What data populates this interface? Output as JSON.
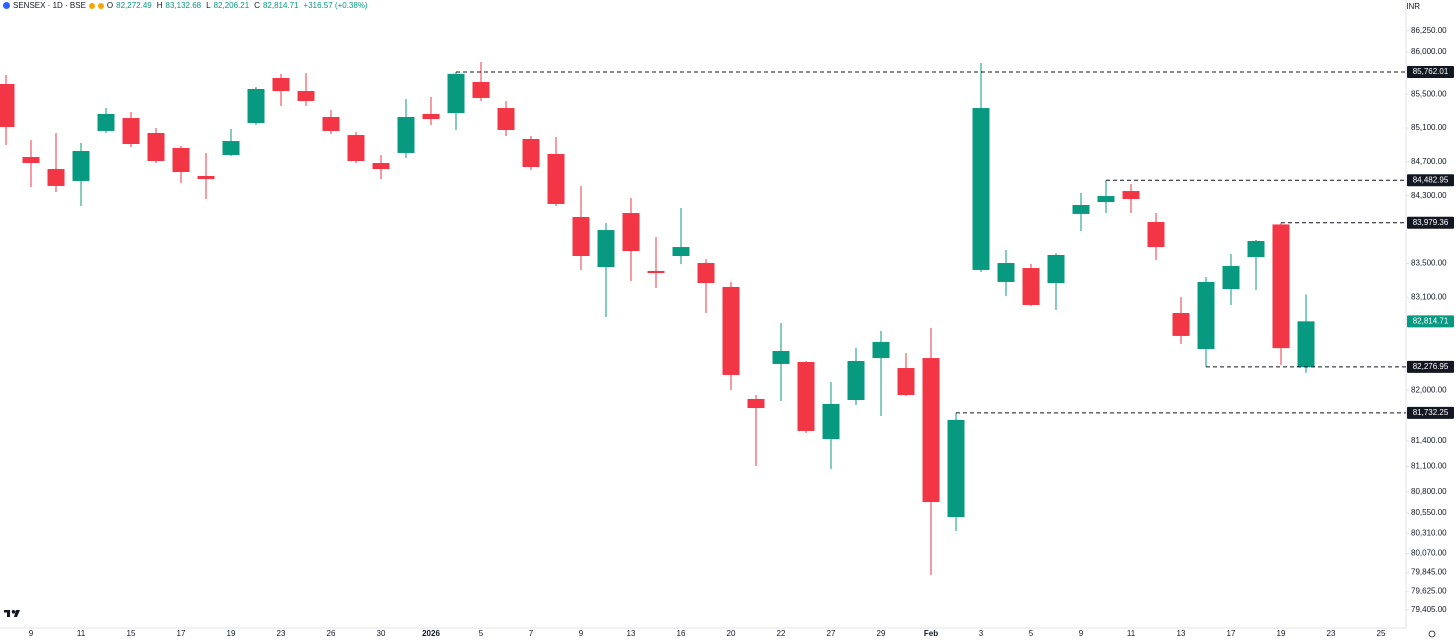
{
  "chart_data": {
    "type": "candlestick",
    "header": {
      "symbol": "SENSEX · 1D · BSE",
      "o": "O",
      "o_value": "82,272.49",
      "h": "H",
      "h_value": "83,132.68",
      "l": "L",
      "l_value": "82,206.21",
      "c": "C",
      "c_value": "82,814.71",
      "change": "+316.57 (+0.38%)"
    },
    "currency": "INR",
    "up_color": "#089981",
    "down_color": "#f23645",
    "categories": [
      null,
      "9",
      null,
      "11",
      null,
      "15",
      null,
      "17",
      null,
      "19",
      null,
      "23",
      null,
      "26",
      null,
      "30",
      null,
      "2026",
      null,
      "5",
      null,
      "7",
      null,
      "9",
      null,
      "13",
      null,
      "16",
      null,
      "20",
      null,
      "22",
      null,
      "27",
      null,
      "29",
      null,
      "Feb",
      null,
      "3",
      null,
      "5",
      null,
      "9",
      null,
      "11",
      null,
      "13",
      null,
      "17",
      null,
      "19",
      null,
      "23",
      null,
      "25"
    ],
    "open": [
      85620,
      84757,
      84615,
      84474,
      85065,
      85218,
      85041,
      84864,
      84533,
      84781,
      85159,
      85691,
      85537,
      85230,
      85017,
      84686,
      84805,
      85266,
      85277,
      85644,
      85336,
      84970,
      84793,
      84048,
      83457,
      84095,
      83410,
      83587,
      83504,
      83221,
      81897,
      82311,
      82334,
      81424,
      81885,
      82381,
      82263,
      82381,
      80502,
      83422,
      83280,
      83445,
      83268,
      84084,
      84225,
      84355,
      83989,
      82913,
      82488,
      83197,
      83575,
      83960,
      82272.49,
      null,
      null,
      null
    ],
    "high": [
      85727,
      84958,
      85041,
      84923,
      85336,
      85289,
      85100,
      84887,
      84805,
      85088,
      85585,
      85738,
      85750,
      85313,
      85053,
      84781,
      85443,
      85466,
      85762.01,
      85880,
      85419,
      85006,
      84994,
      84415,
      83977,
      84273,
      83812,
      84154,
      83552,
      83280,
      81944,
      82795,
      82346,
      82098,
      82500,
      82701,
      82441,
      82736,
      81732.25,
      85868,
      83658,
      83493,
      83623,
      84332,
      84482.95,
      84440,
      84095,
      83102,
      83339,
      83611,
      83776,
      83979.36,
      83132.68,
      null,
      null,
      null
    ],
    "low": [
      84899,
      84403,
      84344,
      84178,
      85041,
      84875,
      84686,
      84450,
      84261,
      84769,
      85136,
      85360,
      85360,
      85029,
      84686,
      84497,
      84745,
      85136,
      85076,
      85419,
      85006,
      84604,
      84178,
      83422,
      82866,
      83292,
      83209,
      83493,
      82913,
      82003,
      81105,
      81873,
      81495,
      81069,
      81826,
      81696,
      81932,
      79817,
      80337,
      83398,
      83114,
      82996,
      82949,
      83883,
      84095,
      84095,
      83540,
      82547,
      82276.95,
      83008,
      83185,
      82299,
      82206.21,
      null,
      null,
      null
    ],
    "close": [
      85112,
      84686,
      84415,
      84828,
      85266,
      84911,
      84710,
      84580,
      84497,
      84946,
      85561,
      85537,
      85419,
      85065,
      84710,
      84615,
      85230,
      85206,
      85740,
      85455,
      85076,
      84639,
      84202,
      83587,
      83894,
      83646,
      83386,
      83693,
      83268,
      82181,
      81790,
      82464,
      81519,
      81838,
      82346,
      82571,
      81944,
      80679,
      81649,
      85336,
      83504,
      83008,
      83599,
      84190,
      84296,
      84261,
      83693,
      82642,
      83280,
      83469,
      83764,
      82498.14,
      82814.71,
      null,
      null,
      null
    ],
    "ylim": [
      79190,
      86613
    ],
    "yticks": [
      {
        "value": 86250,
        "label": "86,250.00"
      },
      {
        "value": 86000,
        "label": "86,000.00"
      },
      {
        "value": 85500,
        "label": "85,500.00"
      },
      {
        "value": 85100,
        "label": "85,100.00"
      },
      {
        "value": 84700,
        "label": "84,700.00"
      },
      {
        "value": 84300,
        "label": "84,300.00"
      },
      {
        "value": 83500,
        "label": "83,500.00"
      },
      {
        "value": 83100,
        "label": "83,100.00"
      },
      {
        "value": 82000,
        "label": "82,000.00"
      },
      {
        "value": 81400,
        "label": "81,400.00"
      },
      {
        "value": 81100,
        "label": "81,100.00"
      },
      {
        "value": 80800,
        "label": "80,800.00"
      },
      {
        "value": 80550,
        "label": "80,550.00"
      },
      {
        "value": 80310,
        "label": "80,310.00"
      },
      {
        "value": 80070,
        "label": "80,070.00"
      },
      {
        "value": 79845,
        "label": "79,845.00"
      },
      {
        "value": 79625,
        "label": "79,625.00"
      },
      {
        "value": 79405,
        "label": "79,405.00"
      }
    ],
    "levels": [
      {
        "value": 85762.01,
        "label": "85,762.01"
      },
      {
        "value": 84482.95,
        "label": "84,482.95"
      },
      {
        "value": 83979.36,
        "label": "83,979.36"
      },
      {
        "value": 82276.95,
        "label": "82,276.95"
      },
      {
        "value": 81732.25,
        "label": "81,732.25"
      }
    ],
    "last_price": {
      "value": 82814.71,
      "label": "82,814.71"
    },
    "grid": false
  }
}
